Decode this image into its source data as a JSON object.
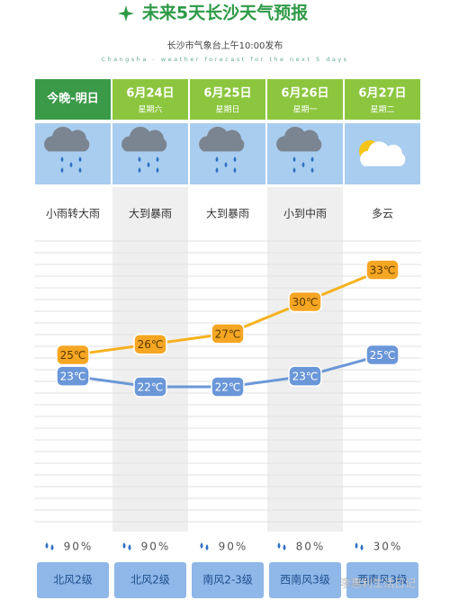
{
  "header": {
    "title": "未来5天长沙天气预报",
    "source": "长沙市气象台上午10:00发布",
    "subtitle": "Changsha - weather forecast for the next 5 days"
  },
  "days": [
    {
      "date": "今晚-明日",
      "weekday": null,
      "icon": "rain",
      "weather": "小雨转大雨",
      "high": 25,
      "high_label": "25℃",
      "low": 23,
      "low_label": "23℃",
      "humidity": "90%",
      "wind": "北风2级"
    },
    {
      "date": "6月24日",
      "weekday": "星期六",
      "icon": "rain",
      "weather": "大到暴雨",
      "high": 26,
      "high_label": "26℃",
      "low": 22,
      "low_label": "22℃",
      "humidity": "90%",
      "wind": "北风2级"
    },
    {
      "date": "6月25日",
      "weekday": "星期日",
      "icon": "rain",
      "weather": "大到暴雨",
      "high": 27,
      "high_label": "27℃",
      "low": 22,
      "low_label": "22℃",
      "humidity": "90%",
      "wind": "南风2-3级"
    },
    {
      "date": "6月26日",
      "weekday": "星期一",
      "icon": "rain",
      "weather": "小到中雨",
      "high": 30,
      "high_label": "30℃",
      "low": 23,
      "low_label": "23℃",
      "humidity": "80%",
      "wind": "西南风3级"
    },
    {
      "date": "6月27日",
      "weekday": "星期二",
      "icon": "partly-cloudy",
      "weather": "多云",
      "high": 33,
      "high_label": "33℃",
      "low": 25,
      "low_label": "25℃",
      "humidity": "30%",
      "wind": "西南风3级"
    }
  ],
  "watermark": "李惠利生活日记"
}
